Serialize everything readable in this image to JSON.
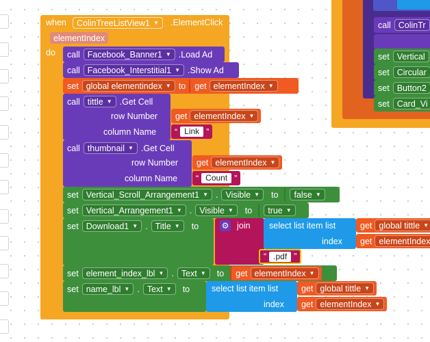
{
  "event": {
    "when": "when",
    "component": "ColinTreeListView1",
    "event": ".ElementClick",
    "param": "elementIndex",
    "do": "do"
  },
  "b1": {
    "call": "call",
    "comp": "Facebook_Banner1",
    "method": ".Load Ad"
  },
  "b2": {
    "call": "call",
    "comp": "Facebook_Interstitial1",
    "method": ".Show Ad"
  },
  "b3": {
    "set": "set",
    "var": "global elementindex",
    "to": "to",
    "get": "get",
    "getvar": "elementIndex"
  },
  "b4": {
    "call": "call",
    "comp": "tittle",
    "method": ".Get Cell",
    "row": "row Number",
    "col": "column Name",
    "get": "get",
    "getvar": "elementIndex",
    "str": "Link"
  },
  "b5": {
    "call": "call",
    "comp": "thumbnail",
    "method": ".Get Cell",
    "row": "row Number",
    "col": "column Name",
    "get": "get",
    "getvar": "elementIndex",
    "str": "Count"
  },
  "b6": {
    "set": "set",
    "comp": "Vertical_Scroll_Arrangement1",
    "prop": "Visible",
    "to": "to",
    "val": "false"
  },
  "b7": {
    "set": "set",
    "comp": "Vertical_Arrangement1",
    "prop": "Visible",
    "to": "to",
    "val": "true"
  },
  "b8": {
    "set": "set",
    "comp": "Download1",
    "prop": "Title",
    "to": "to",
    "join": "join",
    "select": "select list item",
    "list": "list",
    "get": "get",
    "gvar": "global tittle",
    "index": "index",
    "ivar": "elementIndex",
    "pdf": ".pdf"
  },
  "b9": {
    "set": "set",
    "comp": "element_index_lbl",
    "prop": "Text",
    "to": "to",
    "get": "get",
    "getvar": "elementIndex"
  },
  "b10": {
    "set": "set",
    "comp": "name_lbl",
    "prop": "Text",
    "to": "to",
    "select": "select list item",
    "list": "list",
    "get": "get",
    "gvar": "global tittle",
    "index": "index",
    "ivar": "elementIndex"
  },
  "right": {
    "call": "call",
    "comp": "ColinTr",
    "rows": [
      {
        "set": "set",
        "comp": "Vertical"
      },
      {
        "set": "set",
        "comp": "Circular"
      },
      {
        "set": "set",
        "comp": "Button2"
      },
      {
        "set": "set",
        "comp": "Card_Vi"
      }
    ]
  }
}
